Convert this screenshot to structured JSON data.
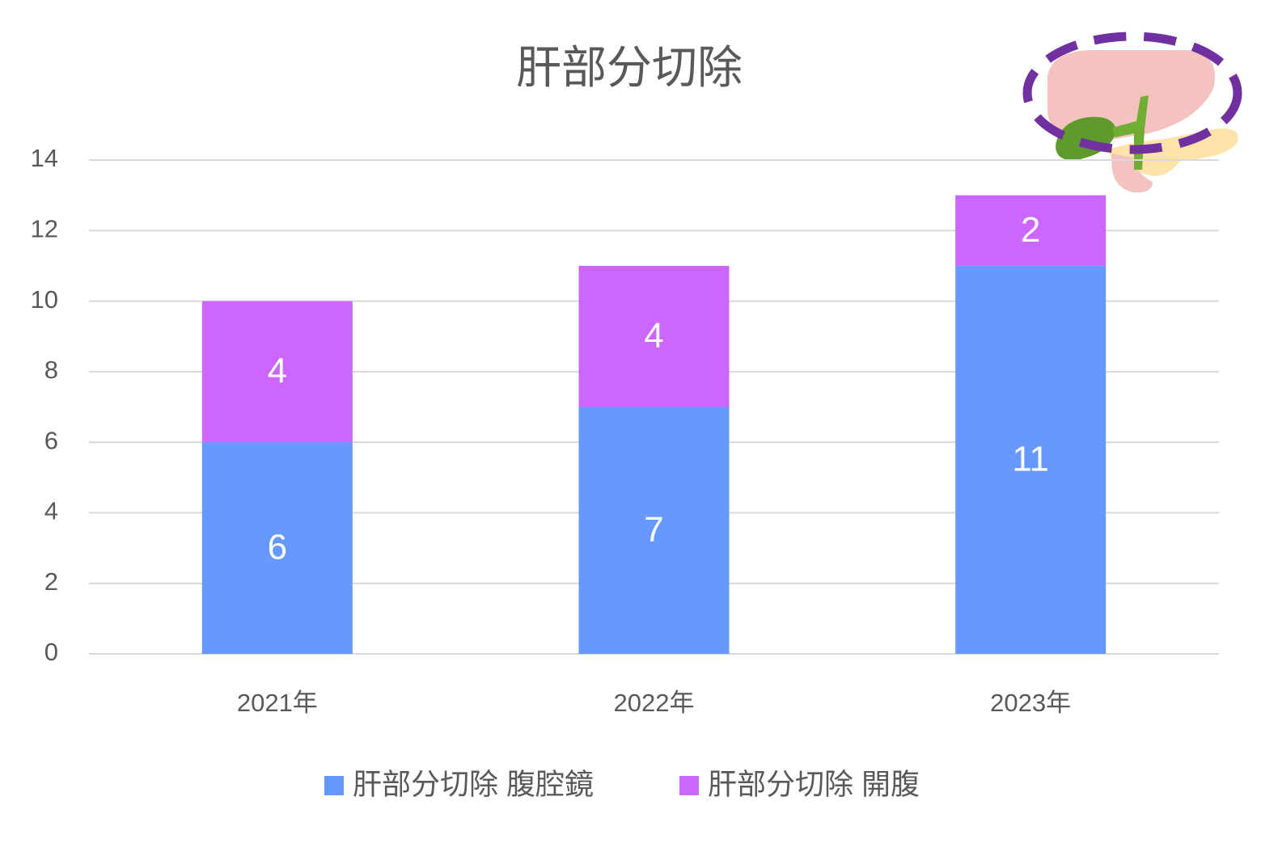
{
  "chart_data": {
    "type": "stacked_bar",
    "title": "肝部分切除",
    "categories": [
      "2021年",
      "2022年",
      "2023年"
    ],
    "series": [
      {
        "name": "肝部分切除 腹腔鏡",
        "color": "#6699ff",
        "values": [
          6,
          7,
          11
        ]
      },
      {
        "name": "肝部分切除 開腹",
        "color": "#cc66ff",
        "values": [
          4,
          4,
          2
        ]
      }
    ],
    "ylim": [
      0,
      14
    ],
    "yticks": [
      0,
      2,
      4,
      6,
      8,
      10,
      12,
      14
    ],
    "grid": true,
    "legend": "bottom"
  }
}
